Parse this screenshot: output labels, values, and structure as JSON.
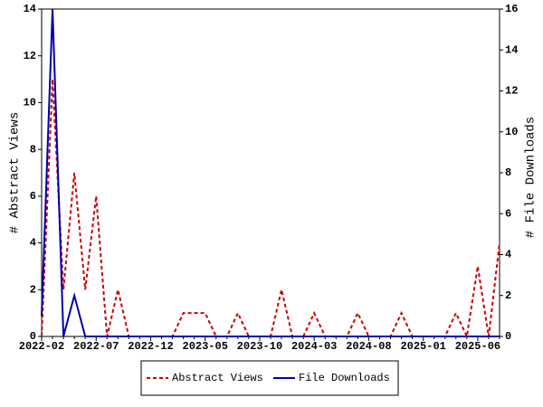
{
  "chart_data": {
    "type": "line",
    "categories": [
      "2022-02",
      null,
      null,
      null,
      null,
      "2022-07",
      null,
      null,
      null,
      null,
      "2022-12",
      null,
      null,
      null,
      null,
      "2023-05",
      null,
      null,
      null,
      null,
      "2023-10",
      null,
      null,
      null,
      null,
      "2024-03",
      null,
      null,
      null,
      null,
      "2024-08",
      null,
      null,
      null,
      null,
      "2025-01",
      null,
      null,
      null,
      null,
      "2025-06",
      null,
      null
    ],
    "series": [
      {
        "name": "Abstract Views",
        "color": "#cc0000",
        "style": "dashed",
        "values": [
          0,
          11,
          2,
          7,
          2,
          6,
          0,
          2,
          0,
          0,
          0,
          0,
          0,
          1,
          1,
          1,
          0,
          0,
          1,
          0,
          0,
          0,
          2,
          0,
          0,
          1,
          0,
          0,
          0,
          1,
          0,
          0,
          0,
          1,
          0,
          0,
          0,
          0,
          1,
          0,
          3,
          0,
          4
        ]
      },
      {
        "name": "File Downloads",
        "color": "#0000aa",
        "style": "solid",
        "axis": "y2",
        "values": [
          1,
          16,
          0,
          2,
          0,
          0,
          0,
          0,
          0,
          0,
          0,
          0,
          0,
          0,
          0,
          0,
          0,
          0,
          0,
          0,
          0,
          0,
          0,
          0,
          0,
          0,
          0,
          0,
          0,
          0,
          0,
          0,
          0,
          0,
          0,
          0,
          0,
          0,
          0,
          0,
          0,
          0,
          0
        ]
      }
    ],
    "ylabel": "# Abstract Views",
    "y2label": "# File Downloads",
    "ylim": [
      0,
      14
    ],
    "yticks": [
      0,
      2,
      4,
      6,
      8,
      10,
      12,
      14
    ],
    "y2lim": [
      0,
      16
    ],
    "y2ticks": [
      0,
      2,
      4,
      6,
      8,
      10,
      12,
      14,
      16
    ],
    "legend": "bottom"
  }
}
